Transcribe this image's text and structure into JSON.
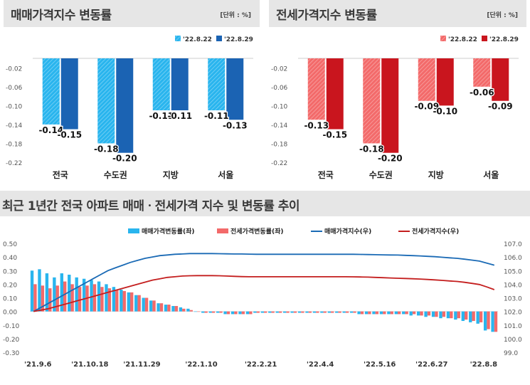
{
  "panels": {
    "top_left": {
      "title": "매매가격지수 변동률",
      "unit": "[단위 : %]"
    },
    "top_right": {
      "title": "전세가격지수 변동률",
      "unit": "[단위 : %]"
    },
    "bottom": {
      "title": "최근 1년간 전국 아파트 매매ㆍ전세가격 지수 및 변동률 추이"
    }
  },
  "colors": {
    "sale_prev": "#29b5ee",
    "sale_curr": "#1b63b3",
    "jeonse_prev": "#f36a6a",
    "jeonse_curr": "#c9151e",
    "sale_index_line": "#1a6ab5",
    "jeonse_index_line": "#c41e1e"
  },
  "chart_data": [
    {
      "type": "bar",
      "categories": [
        "전국",
        "수도권",
        "지방",
        "서울"
      ],
      "series": [
        {
          "name": "'22.8.22",
          "values": [
            -0.14,
            -0.18,
            -0.11,
            -0.11
          ],
          "labels": [
            "-0.14",
            "-0.18",
            "-0.11",
            "-0.11"
          ]
        },
        {
          "name": "'22.8.29",
          "values": [
            -0.15,
            -0.2,
            -0.11,
            -0.13
          ],
          "labels": [
            "-0.15",
            "-0.20",
            "-0.11",
            "-0.13"
          ]
        }
      ],
      "ylim": [
        -0.22,
        0.0
      ],
      "yticks": [
        -0.02,
        -0.06,
        -0.1,
        -0.14,
        -0.18,
        -0.22
      ],
      "ytick_labels": [
        "-0.02",
        "-0.06",
        "-0.10",
        "-0.14",
        "-0.18",
        "-0.22"
      ],
      "grid": false,
      "legend": "top-right"
    },
    {
      "type": "bar",
      "categories": [
        "전국",
        "수도권",
        "지방",
        "서울"
      ],
      "series": [
        {
          "name": "'22.8.22",
          "values": [
            -0.13,
            -0.18,
            -0.09,
            -0.06
          ],
          "labels": [
            "-0.13",
            "-0.18",
            "-0.09",
            "-0.06"
          ]
        },
        {
          "name": "'22.8.29",
          "values": [
            -0.15,
            -0.2,
            -0.1,
            -0.09
          ],
          "labels": [
            "-0.15",
            "-0.20",
            "-0.10",
            "-0.09"
          ]
        }
      ],
      "ylim": [
        -0.22,
        0.0
      ],
      "yticks": [
        -0.02,
        -0.06,
        -0.1,
        -0.14,
        -0.18,
        -0.22
      ],
      "ytick_labels": [
        "-0.02",
        "-0.06",
        "-0.10",
        "-0.14",
        "-0.18",
        "-0.22"
      ],
      "grid": false,
      "legend": "top-right"
    },
    {
      "type": "bar",
      "x_ticks": [
        "'21.9.6",
        "'21.10.18",
        "'21.11.29",
        "'22.1.10",
        "'22.2.21",
        "'22.4.4",
        "'22.5.16",
        "'22.6.27",
        "'22.8.8"
      ],
      "series": [
        {
          "name": "매매가격변동률(좌)",
          "type": "bar",
          "axis": "left",
          "values": [
            0.3,
            0.31,
            0.28,
            0.25,
            0.28,
            0.27,
            0.25,
            0.24,
            0.23,
            0.22,
            0.2,
            0.18,
            0.16,
            0.14,
            0.12,
            0.1,
            0.08,
            0.06,
            0.05,
            0.04,
            0.03,
            0.02,
            0.0,
            -0.01,
            -0.01,
            -0.01,
            -0.02,
            -0.02,
            -0.02,
            -0.02,
            -0.01,
            -0.01,
            -0.01,
            -0.01,
            -0.01,
            -0.01,
            -0.01,
            -0.01,
            -0.01,
            -0.01,
            -0.01,
            -0.01,
            -0.01,
            -0.01,
            -0.02,
            -0.02,
            -0.02,
            -0.02,
            -0.02,
            -0.02,
            -0.02,
            -0.03,
            -0.03,
            -0.04,
            -0.04,
            -0.05,
            -0.05,
            -0.06,
            -0.07,
            -0.08,
            -0.09,
            -0.14,
            -0.15
          ]
        },
        {
          "name": "전세가격변동률(좌)",
          "type": "bar",
          "axis": "left",
          "values": [
            0.2,
            0.19,
            0.17,
            0.19,
            0.22,
            0.2,
            0.18,
            0.19,
            0.2,
            0.18,
            0.17,
            0.16,
            0.15,
            0.14,
            0.12,
            0.1,
            0.08,
            0.06,
            0.05,
            0.04,
            0.02,
            0.01,
            0.0,
            -0.01,
            -0.01,
            -0.01,
            -0.02,
            -0.02,
            -0.02,
            -0.02,
            -0.01,
            -0.01,
            -0.01,
            -0.01,
            -0.01,
            -0.01,
            -0.01,
            -0.01,
            -0.01,
            -0.01,
            -0.01,
            -0.01,
            -0.01,
            -0.01,
            -0.02,
            -0.02,
            -0.02,
            -0.02,
            -0.02,
            -0.02,
            -0.02,
            -0.02,
            -0.03,
            -0.03,
            -0.04,
            -0.04,
            -0.05,
            -0.05,
            -0.06,
            -0.07,
            -0.08,
            -0.13,
            -0.15
          ]
        },
        {
          "name": "매매가격지수(우)",
          "type": "line",
          "axis": "right",
          "values": [
            102.0,
            102.3,
            102.6,
            102.9,
            103.2,
            103.5,
            103.8,
            104.1,
            104.4,
            104.7,
            105.0,
            105.2,
            105.4,
            105.6,
            105.75,
            105.9,
            106.0,
            106.1,
            106.15,
            106.2,
            106.22,
            106.25,
            106.25,
            106.25,
            106.25,
            106.24,
            106.23,
            106.22,
            106.22,
            106.21,
            106.2,
            106.2,
            106.2,
            106.2,
            106.2,
            106.2,
            106.2,
            106.2,
            106.2,
            106.2,
            106.2,
            106.2,
            106.2,
            106.2,
            106.19,
            106.18,
            106.17,
            106.16,
            106.15,
            106.14,
            106.12,
            106.1,
            106.08,
            106.05,
            106.02,
            105.98,
            105.94,
            105.9,
            105.84,
            105.77,
            105.7,
            105.55,
            105.4
          ]
        },
        {
          "name": "전세가격지수(우)",
          "type": "line",
          "axis": "right",
          "values": [
            102.0,
            102.1,
            102.2,
            102.35,
            102.5,
            102.65,
            102.8,
            102.95,
            103.1,
            103.25,
            103.4,
            103.55,
            103.7,
            103.85,
            104.0,
            104.15,
            104.3,
            104.4,
            104.5,
            104.55,
            104.6,
            104.62,
            104.63,
            104.63,
            104.63,
            104.62,
            104.6,
            104.58,
            104.56,
            104.55,
            104.55,
            104.55,
            104.55,
            104.55,
            104.55,
            104.55,
            104.55,
            104.55,
            104.55,
            104.55,
            104.55,
            104.55,
            104.55,
            104.54,
            104.53,
            104.52,
            104.5,
            104.48,
            104.46,
            104.44,
            104.42,
            104.4,
            104.38,
            104.35,
            104.32,
            104.28,
            104.24,
            104.2,
            104.14,
            104.06,
            103.98,
            103.8,
            103.6
          ]
        }
      ],
      "y_left_lim": [
        -0.3,
        0.5
      ],
      "y_left_ticks": [
        "0.50",
        "0.40",
        "0.30",
        "0.20",
        "0.10",
        "0.00",
        "-0.10",
        "-0.20",
        "-0.30"
      ],
      "y_right_lim": [
        99.0,
        107.0
      ],
      "y_right_ticks": [
        "107.0",
        "106.0",
        "105.0",
        "104.0",
        "103.0",
        "102.0",
        "101.0",
        "100.0",
        "99.0"
      ],
      "grid": false,
      "legend": "top"
    }
  ]
}
